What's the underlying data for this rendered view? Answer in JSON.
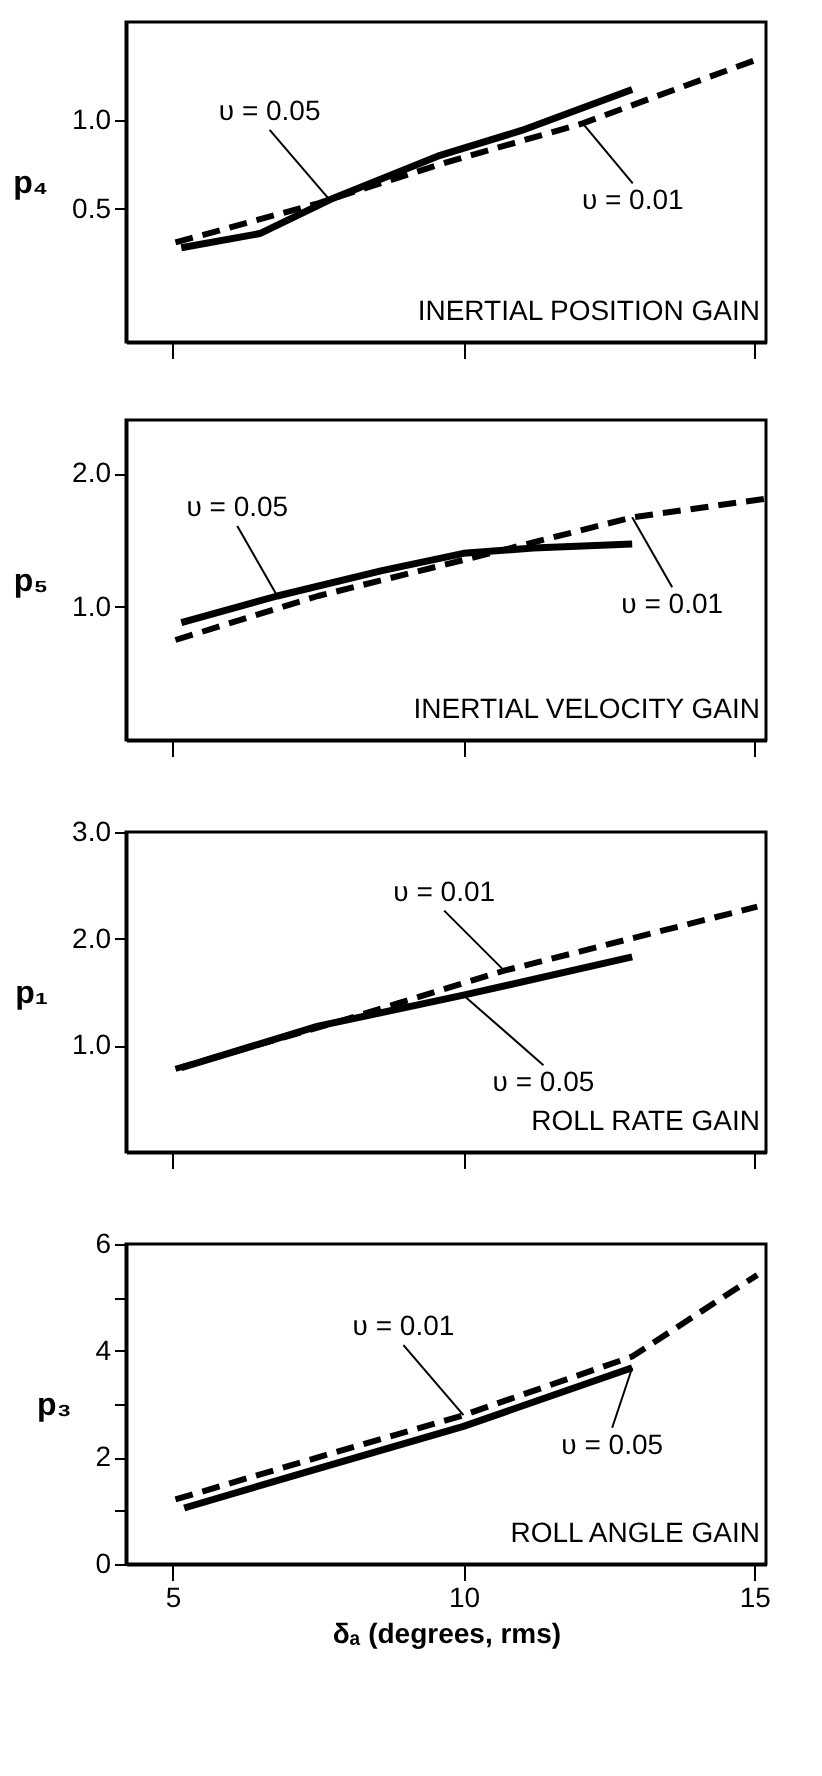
{
  "chart_data": [
    {
      "type": "line",
      "title": "INERTIAL POSITION GAIN",
      "ylabel": "p₄",
      "xlim": [
        4.2,
        15.2
      ],
      "xticks": [
        5,
        10,
        15
      ],
      "ylim": [
        -0.25,
        1.55
      ],
      "yticks": [
        {
          "value": 0.5,
          "label": "0.5"
        },
        {
          "value": 1.0,
          "label": "1.0"
        }
      ],
      "tick_labels": "y",
      "grid": false,
      "legend": false,
      "marker": "none",
      "series": [
        {
          "color": "#000000",
          "line_style": "solid",
          "x": [
            5.15,
            6.5,
            7.7,
            9.6,
            11.0,
            12.9
          ],
          "values": [
            0.28,
            0.36,
            0.55,
            0.8,
            0.94,
            1.17
          ]
        },
        {
          "color": "#000000",
          "line_style": "dashed",
          "x": [
            5.05,
            7.5,
            9.6,
            12.05,
            15.05
          ],
          "values": [
            0.31,
            0.53,
            0.75,
            0.98,
            1.34
          ]
        }
      ],
      "annotations": [
        {
          "text": "υ = 0.05",
          "x": 7.7,
          "y": 0.55
        },
        {
          "text": "υ = 0.01",
          "x": 12.05,
          "y": 0.98
        }
      ]
    },
    {
      "type": "line",
      "title": "INERTIAL VELOCITY GAIN",
      "ylabel": "p₅",
      "xlim": [
        4.2,
        15.2
      ],
      "xticks": [
        5,
        10,
        15
      ],
      "ylim": [
        0,
        2.4
      ],
      "yticks": [
        {
          "value": 1.0,
          "label": "1.0"
        },
        {
          "value": 2.0,
          "label": "2.0"
        }
      ],
      "tick_labels": "y",
      "grid": false,
      "legend": false,
      "marker": "none",
      "series": [
        {
          "color": "#000000",
          "line_style": "solid",
          "x": [
            5.15,
            6.8,
            8.6,
            10,
            11.2,
            12.9
          ],
          "values": [
            0.88,
            1.08,
            1.27,
            1.4,
            1.44,
            1.47
          ]
        },
        {
          "color": "#000000",
          "line_style": "dashed",
          "x": [
            5.05,
            7.5,
            10,
            12.9,
            15.2
          ],
          "values": [
            0.75,
            1.08,
            1.35,
            1.67,
            1.81
          ]
        }
      ],
      "annotations": [
        {
          "text": "υ = 0.05",
          "x": 6.8,
          "y": 1.08
        },
        {
          "text": "υ = 0.01",
          "x": 12.9,
          "y": 1.67
        }
      ]
    },
    {
      "type": "line",
      "title": "ROLL RATE GAIN",
      "ylabel": "p₁",
      "xlim": [
        4.2,
        15.2
      ],
      "xticks": [
        5,
        10,
        15
      ],
      "ylim": [
        0,
        3.0
      ],
      "yticks": [
        {
          "value": 1.0,
          "label": "1.0"
        },
        {
          "value": 2.0,
          "label": "2.0"
        },
        {
          "value": 3.0,
          "label": "3.0"
        }
      ],
      "tick_labels": "y",
      "grid": false,
      "legend": false,
      "marker": "none",
      "series": [
        {
          "color": "#000000",
          "line_style": "solid",
          "x": [
            5.15,
            7.5,
            10,
            12.9
          ],
          "values": [
            0.79,
            1.18,
            1.47,
            1.83
          ]
        },
        {
          "color": "#000000",
          "line_style": "dashed",
          "x": [
            5.05,
            7.9,
            10.7,
            15.05
          ],
          "values": [
            0.78,
            1.23,
            1.7,
            2.3
          ]
        }
      ],
      "annotations": [
        {
          "text": "υ = 0.01",
          "x": 10.7,
          "y": 1.7
        },
        {
          "text": "υ = 0.05",
          "x": 10,
          "y": 1.47
        }
      ]
    },
    {
      "type": "line",
      "title": "ROLL ANGLE GAIN",
      "ylabel": "p₃",
      "xlabel": "δₐ (degrees, rms)",
      "xlim": [
        4.2,
        15.2
      ],
      "xticks": [
        5,
        10,
        15
      ],
      "ylim": [
        0,
        6
      ],
      "yticks": [
        0,
        {
          "value": 1,
          "label": null
        },
        2,
        {
          "value": 3,
          "label": null
        },
        4,
        {
          "value": 5,
          "label": null
        },
        6
      ],
      "grid": false,
      "legend": false,
      "marker": "none",
      "series": [
        {
          "color": "#000000",
          "line_style": "solid",
          "x": [
            5.2,
            7.5,
            10,
            12.9
          ],
          "values": [
            1.05,
            1.79,
            2.58,
            3.68
          ]
        },
        {
          "color": "#000000",
          "line_style": "dashed",
          "x": [
            5.05,
            7.5,
            10,
            12.9,
            15.05
          ],
          "values": [
            1.21,
            2.0,
            2.79,
            3.89,
            5.42
          ]
        }
      ],
      "annotations": [
        {
          "text": "υ = 0.01",
          "x": 10,
          "y": 2.79
        },
        {
          "text": "υ = 0.05",
          "x": 12.9,
          "y": 3.68
        }
      ]
    }
  ]
}
